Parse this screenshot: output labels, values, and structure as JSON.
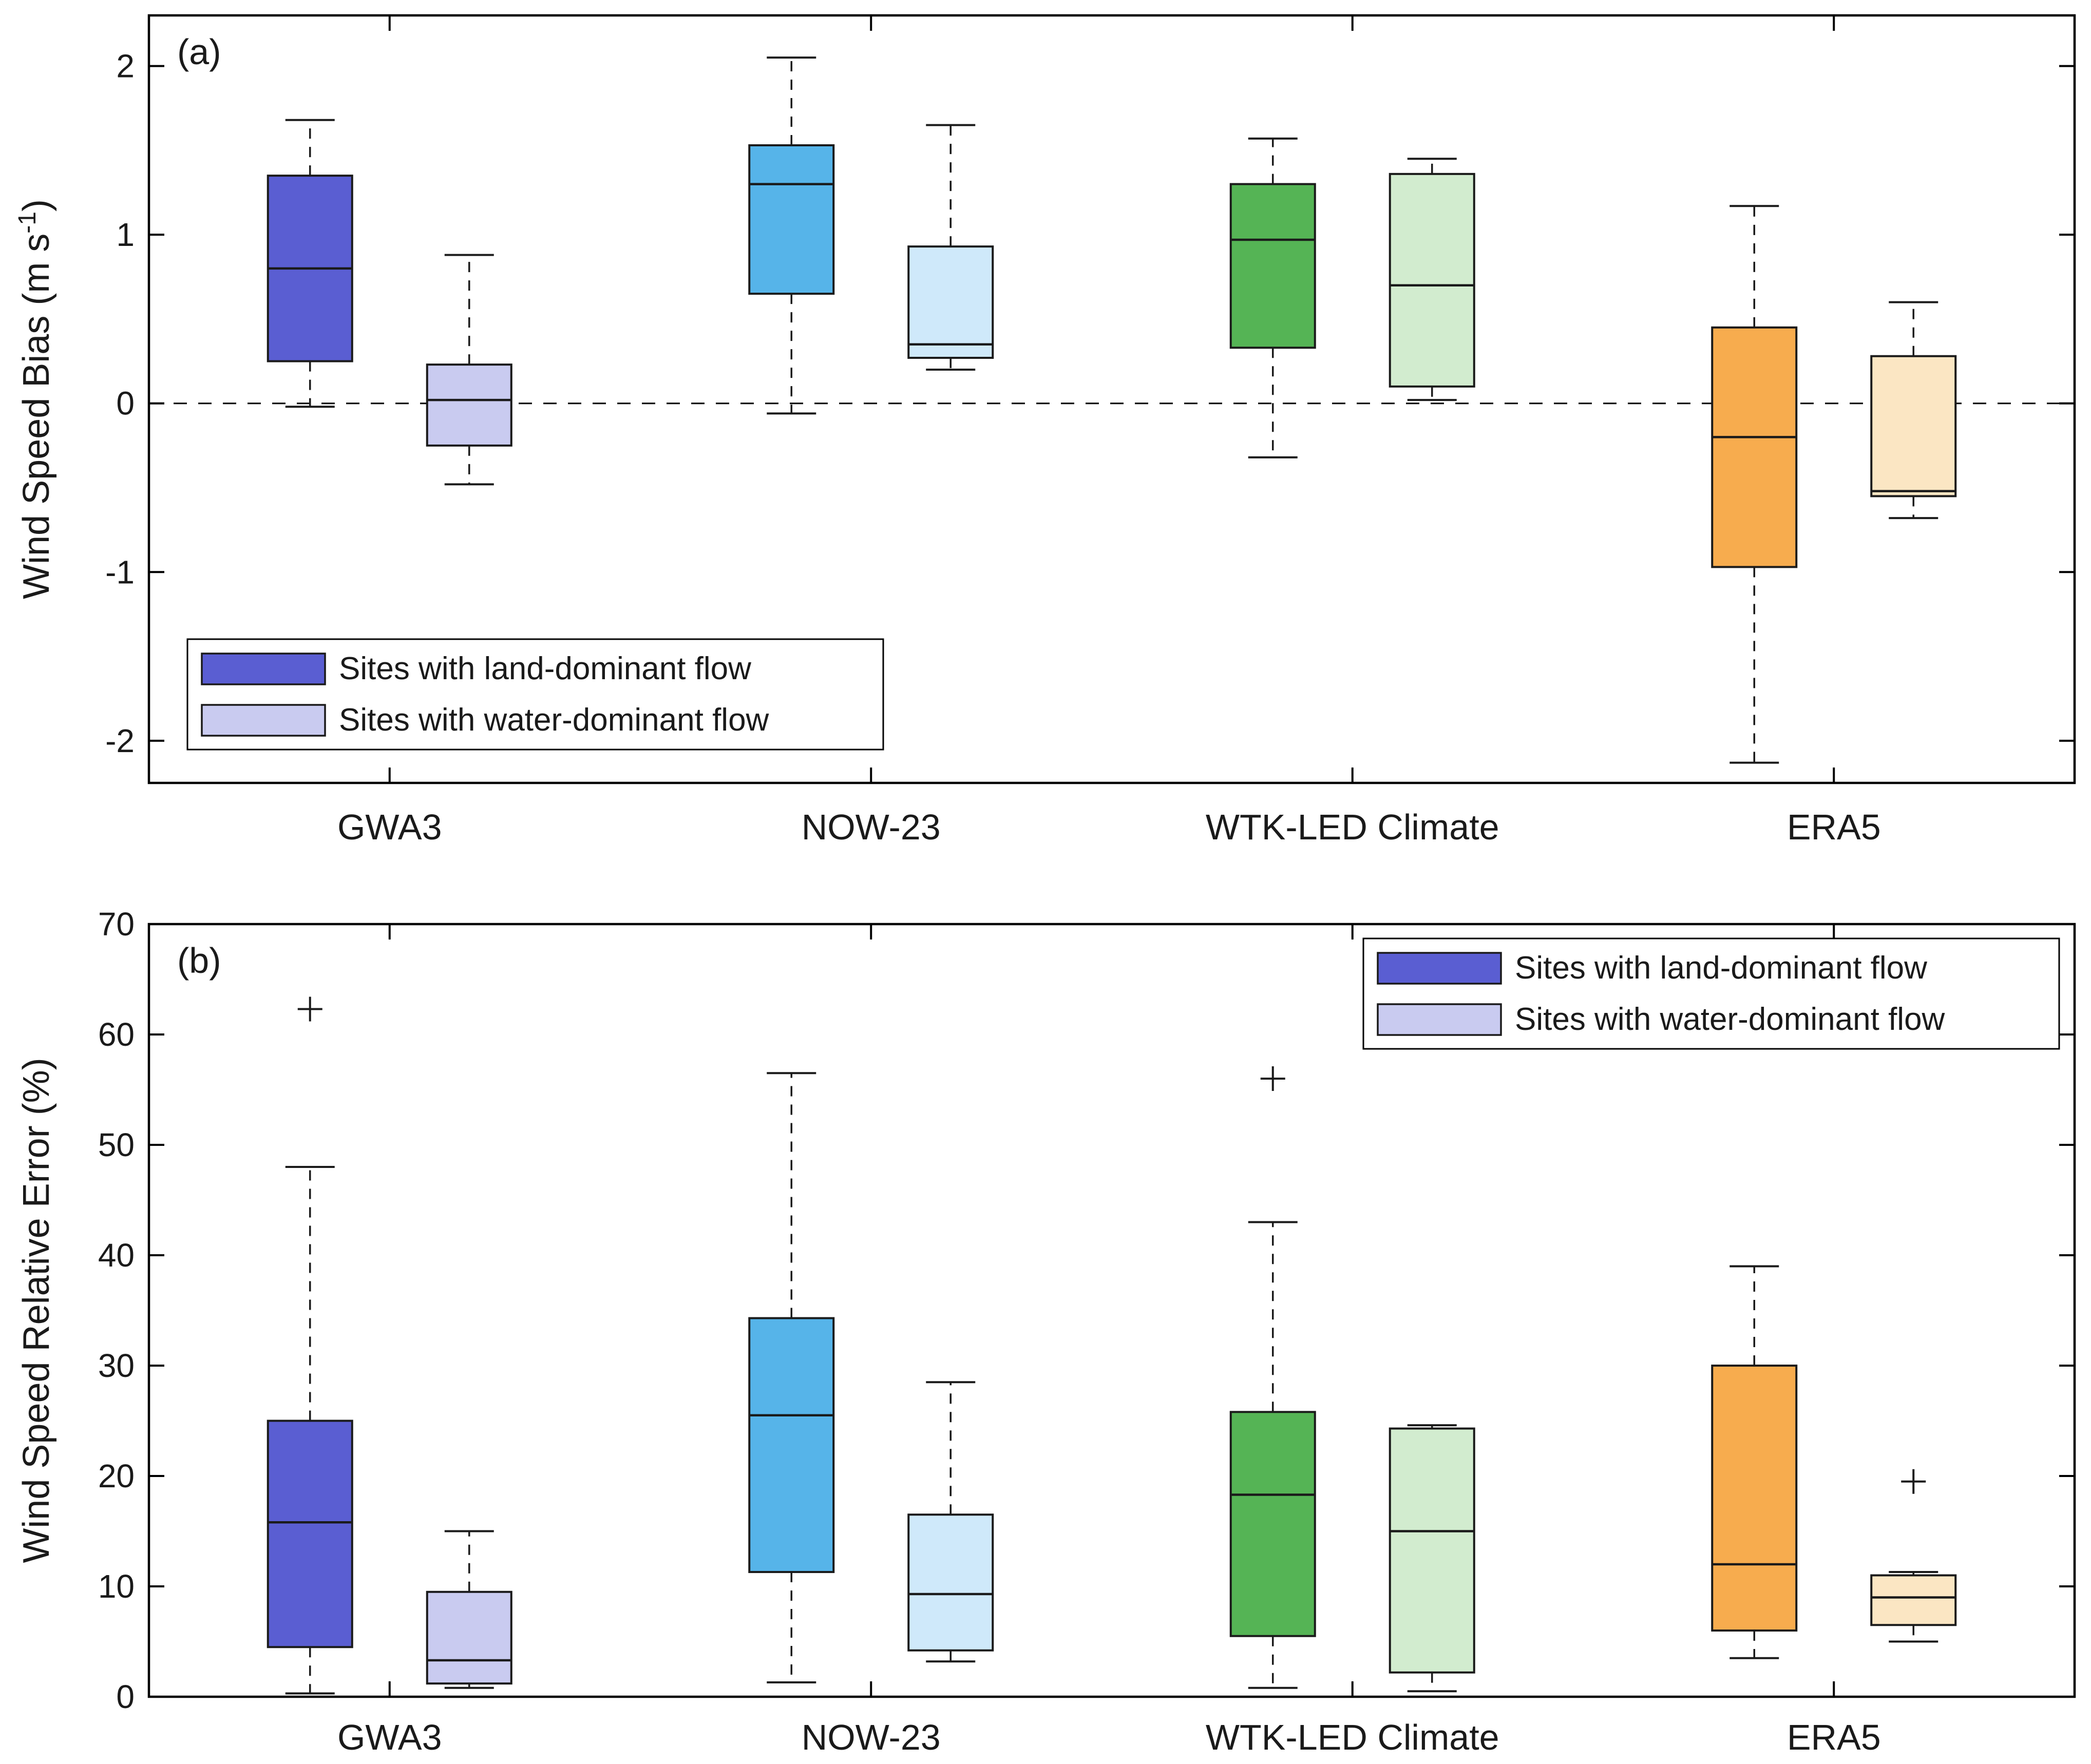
{
  "figure": {
    "background": "#ffffff",
    "text_color": "#1a1a1a",
    "legend": {
      "entries": [
        {
          "label": "Sites with land-dominant flow",
          "swatch": "#5a5ed2"
        },
        {
          "label": "Sites with water-dominant flow",
          "swatch": "#c9cbf0"
        }
      ]
    }
  },
  "chart_data": [
    {
      "type": "boxplot",
      "panel_label": "(a)",
      "ylabel": {
        "pre": "Wind Speed Bias (m s",
        "sup": "-1",
        "post": ")"
      },
      "ylim": [
        -2.25,
        2.3
      ],
      "yticks": [
        -2,
        -1,
        0,
        1,
        2
      ],
      "zero_line": true,
      "grid": false,
      "legend_position": "bottom-left",
      "categories": [
        "GWA3",
        "NOW-23",
        "WTK-LED Climate",
        "ERA5"
      ],
      "groups": [
        {
          "category": "GWA3",
          "boxes": [
            {
              "series": "land",
              "fill": "#5a5ed2",
              "whislo": -0.02,
              "q1": 0.25,
              "med": 0.8,
              "q3": 1.35,
              "whishi": 1.68,
              "outliers": []
            },
            {
              "series": "water",
              "fill": "#c9cbf0",
              "whislo": -0.48,
              "q1": -0.25,
              "med": 0.02,
              "q3": 0.23,
              "whishi": 0.88,
              "outliers": []
            }
          ]
        },
        {
          "category": "NOW-23",
          "boxes": [
            {
              "series": "land",
              "fill": "#56b4e9",
              "whislo": -0.06,
              "q1": 0.65,
              "med": 1.3,
              "q3": 1.53,
              "whishi": 2.05,
              "outliers": []
            },
            {
              "series": "water",
              "fill": "#cfe9fa",
              "whislo": 0.2,
              "q1": 0.27,
              "med": 0.35,
              "q3": 0.93,
              "whishi": 1.65,
              "outliers": []
            }
          ]
        },
        {
          "category": "WTK-LED Climate",
          "boxes": [
            {
              "series": "land",
              "fill": "#55b455",
              "whislo": -0.32,
              "q1": 0.33,
              "med": 0.97,
              "q3": 1.3,
              "whishi": 1.57,
              "outliers": []
            },
            {
              "series": "water",
              "fill": "#d2eccf",
              "whislo": 0.02,
              "q1": 0.1,
              "med": 0.7,
              "q3": 1.36,
              "whishi": 1.45,
              "outliers": []
            }
          ]
        },
        {
          "category": "ERA5",
          "boxes": [
            {
              "series": "land",
              "fill": "#f7ac4e",
              "whislo": -2.13,
              "q1": -0.97,
              "med": -0.2,
              "q3": 0.45,
              "whishi": 1.17,
              "outliers": []
            },
            {
              "series": "water",
              "fill": "#fbe6c3",
              "whislo": -0.68,
              "q1": -0.55,
              "med": -0.52,
              "q3": 0.28,
              "whishi": 0.6,
              "outliers": []
            }
          ]
        }
      ]
    },
    {
      "type": "boxplot",
      "panel_label": "(b)",
      "ylabel": {
        "pre": "Wind Speed Relative Error (%)"
      },
      "ylim": [
        0,
        70
      ],
      "yticks": [
        0,
        10,
        20,
        30,
        40,
        50,
        60,
        70
      ],
      "zero_line": false,
      "grid": false,
      "legend_position": "top-right",
      "categories": [
        "GWA3",
        "NOW-23",
        "WTK-LED Climate",
        "ERA5"
      ],
      "groups": [
        {
          "category": "GWA3",
          "boxes": [
            {
              "series": "land",
              "fill": "#5a5ed2",
              "whislo": 0.3,
              "q1": 4.5,
              "med": 15.8,
              "q3": 25.0,
              "whishi": 48.0,
              "outliers": [
                62.3
              ]
            },
            {
              "series": "water",
              "fill": "#c9cbf0",
              "whislo": 0.8,
              "q1": 1.2,
              "med": 3.3,
              "q3": 9.5,
              "whishi": 15.0,
              "outliers": []
            }
          ]
        },
        {
          "category": "NOW-23",
          "boxes": [
            {
              "series": "land",
              "fill": "#56b4e9",
              "whislo": 1.3,
              "q1": 11.3,
              "med": 25.5,
              "q3": 34.3,
              "whishi": 56.5,
              "outliers": []
            },
            {
              "series": "water",
              "fill": "#cfe9fa",
              "whislo": 3.2,
              "q1": 4.2,
              "med": 9.3,
              "q3": 16.5,
              "whishi": 28.5,
              "outliers": []
            }
          ]
        },
        {
          "category": "WTK-LED Climate",
          "boxes": [
            {
              "series": "land",
              "fill": "#55b455",
              "whislo": 0.8,
              "q1": 5.5,
              "med": 18.3,
              "q3": 25.8,
              "whishi": 43.0,
              "outliers": [
                56.0
              ]
            },
            {
              "series": "water",
              "fill": "#d2eccf",
              "whislo": 0.5,
              "q1": 2.2,
              "med": 15.0,
              "q3": 24.3,
              "whishi": 24.6,
              "outliers": []
            }
          ]
        },
        {
          "category": "ERA5",
          "boxes": [
            {
              "series": "land",
              "fill": "#f7ac4e",
              "whislo": 3.5,
              "q1": 6.0,
              "med": 12.0,
              "q3": 30.0,
              "whishi": 39.0,
              "outliers": []
            },
            {
              "series": "water",
              "fill": "#fbe6c3",
              "whislo": 5.0,
              "q1": 6.5,
              "med": 9.0,
              "q3": 11.0,
              "whishi": 11.3,
              "outliers": [
                19.5
              ]
            }
          ]
        }
      ]
    }
  ]
}
